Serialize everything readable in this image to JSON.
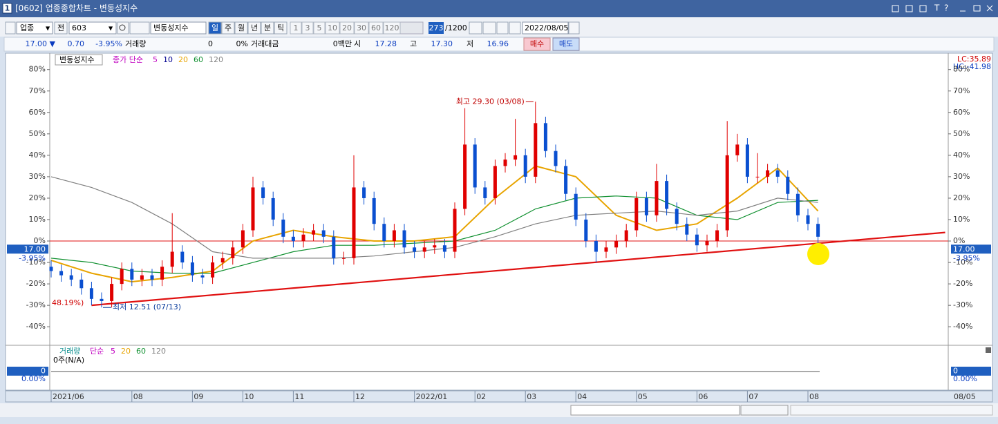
{
  "window": {
    "badge": "1",
    "title": "[0602] 업종종합차트 - 변동성지수"
  },
  "toolbar": {
    "market": "업종",
    "scope": "전",
    "code": "603",
    "name": "변동성지수",
    "periods": [
      "일",
      "주",
      "월",
      "년",
      "분",
      "틱"
    ],
    "intervals": [
      "1",
      "3",
      "5",
      "10",
      "20",
      "30",
      "60",
      "120"
    ],
    "count": "273",
    "count_max": "/1200",
    "date": "2022/08/05"
  },
  "quote": {
    "price": "17.00 ▼",
    "change": "0.70",
    "change_pct": "-3.95%",
    "volume_label": "거래량",
    "volume": "0",
    "volume_pct": "0%",
    "amount_label": "거래대금",
    "amount": "0백만",
    "open_label": "시",
    "open": "17.28",
    "high_label": "고",
    "high": "17.30",
    "low_label": "저",
    "low": "16.96",
    "buy": "매수",
    "sell": "매도"
  },
  "chart_data": {
    "type": "candlestick",
    "series_name": "변동성지수",
    "categories": [
      "2021/06",
      null,
      null,
      null,
      null,
      null,
      null,
      null,
      "08",
      null,
      null,
      null,
      null,
      null,
      "09",
      null,
      null,
      null,
      null,
      "10",
      null,
      null,
      null,
      null,
      "11",
      null,
      null,
      null,
      null,
      null,
      "12",
      null,
      null,
      null,
      null,
      null,
      "2022/01",
      null,
      null,
      null,
      null,
      null,
      "02",
      null,
      null,
      null,
      null,
      "03",
      null,
      null,
      null,
      null,
      "04",
      null,
      null,
      null,
      null,
      null,
      "05",
      null,
      null,
      null,
      null,
      null,
      "06",
      null,
      null,
      null,
      null,
      "07",
      null,
      null,
      null,
      null,
      null,
      "08",
      null
    ],
    "open": [
      -12,
      -14,
      -16,
      -18,
      -22,
      -27,
      -28,
      -20,
      -13,
      -18,
      -16,
      -18,
      -12,
      -5,
      -10,
      -16,
      -17,
      -10,
      -8,
      -3,
      5,
      25,
      20,
      10,
      2,
      0,
      3,
      5,
      2,
      -8,
      -8,
      25,
      20,
      8,
      0,
      5,
      -3,
      -5,
      -3,
      -2,
      -5,
      15,
      45,
      25,
      20,
      35,
      38,
      40,
      30,
      55,
      42,
      35,
      22,
      10,
      0,
      -5,
      -3,
      0,
      5,
      20,
      12,
      28,
      15,
      8,
      3,
      -2,
      0,
      5,
      40,
      45,
      30,
      30,
      33,
      30,
      22,
      12,
      8
    ],
    "high": [
      -9,
      -11,
      -13,
      -15,
      -19,
      -24,
      -17,
      -10,
      -10,
      -13,
      -13,
      -9,
      13,
      -2,
      -7,
      -13,
      -7,
      -5,
      0,
      8,
      30,
      28,
      23,
      13,
      5,
      6,
      8,
      8,
      5,
      -5,
      40,
      28,
      23,
      11,
      8,
      8,
      0,
      0,
      1,
      1,
      18,
      62,
      48,
      28,
      38,
      41,
      57,
      43,
      65,
      58,
      45,
      38,
      25,
      13,
      3,
      0,
      3,
      8,
      23,
      23,
      36,
      31,
      18,
      11,
      6,
      3,
      8,
      56,
      50,
      48,
      41,
      36,
      36,
      33,
      25,
      15,
      11
    ],
    "low": [
      -17,
      -19,
      -21,
      -25,
      -30,
      -31,
      -31,
      -23,
      -21,
      -21,
      -21,
      -21,
      -15,
      -13,
      -19,
      -20,
      -20,
      -13,
      -11,
      -6,
      2,
      17,
      7,
      -1,
      -3,
      -3,
      0,
      -1,
      -11,
      -11,
      -11,
      17,
      5,
      -3,
      -3,
      -6,
      -8,
      -8,
      -6,
      -8,
      -8,
      12,
      22,
      17,
      17,
      32,
      35,
      27,
      27,
      39,
      32,
      19,
      7,
      -3,
      -10,
      -8,
      -6,
      -3,
      2,
      9,
      9,
      12,
      5,
      0,
      -5,
      -5,
      -3,
      2,
      37,
      27,
      27,
      27,
      27,
      19,
      9,
      5,
      -1
    ],
    "close": [
      -14,
      -16,
      -18,
      -22,
      -27,
      -28,
      -20,
      -13,
      -18,
      -16,
      -18,
      -12,
      -5,
      -10,
      -16,
      -17,
      -10,
      -8,
      -3,
      5,
      25,
      20,
      10,
      2,
      0,
      3,
      5,
      2,
      -8,
      -8,
      25,
      20,
      8,
      0,
      5,
      -3,
      -5,
      -3,
      -2,
      -5,
      15,
      45,
      25,
      20,
      35,
      38,
      40,
      30,
      55,
      42,
      35,
      22,
      10,
      0,
      -5,
      -3,
      0,
      5,
      20,
      12,
      28,
      15,
      8,
      3,
      -2,
      0,
      5,
      40,
      45,
      30,
      30,
      33,
      30,
      22,
      12,
      8,
      2
    ],
    "up_color": "#e00000",
    "down_color": "#0a4fd0",
    "ylim": [
      -48,
      87
    ],
    "yticks": [
      {
        "value": 80,
        "label": "80%"
      },
      {
        "value": 70,
        "label": "70%"
      },
      {
        "value": 60,
        "label": "60%"
      },
      {
        "value": 50,
        "label": "50%"
      },
      {
        "value": 40,
        "label": "40%"
      },
      {
        "value": 30,
        "label": "30%"
      },
      {
        "value": 20,
        "label": "20%"
      },
      {
        "value": 10,
        "label": "10%"
      },
      {
        "value": 0,
        "label": "0%"
      },
      {
        "value": -10,
        "label": "-10%"
      },
      {
        "value": -20,
        "label": "-20%"
      },
      {
        "value": -30,
        "label": "-30%"
      },
      {
        "value": -40,
        "label": "-40%"
      }
    ],
    "ma": {
      "label": "종가 단순",
      "label_color": "#c000c0",
      "lines": [
        {
          "name": "5",
          "color": "#c000c0"
        },
        {
          "name": "10",
          "color": "#000090"
        },
        {
          "name": "20",
          "color": "#e8a400",
          "x": [
            0,
            4,
            8,
            12,
            16,
            20,
            24,
            28,
            32,
            36,
            40,
            44,
            48,
            52,
            56,
            60,
            64,
            68,
            72,
            76
          ],
          "values": [
            -9,
            -15,
            -19,
            -17,
            -14,
            0,
            5,
            2,
            0,
            0,
            2,
            20,
            35,
            30,
            12,
            5,
            8,
            20,
            34,
            14
          ]
        },
        {
          "name": "60",
          "color": "#109030",
          "x": [
            0,
            4,
            8,
            12,
            16,
            20,
            24,
            28,
            32,
            36,
            40,
            44,
            48,
            52,
            56,
            60,
            64,
            68,
            72,
            76
          ],
          "values": [
            -8,
            -10,
            -14,
            -15,
            -15,
            -10,
            -5,
            -2,
            -2,
            -1,
            0,
            5,
            15,
            20,
            21,
            20,
            12,
            10,
            18,
            19
          ]
        },
        {
          "name": "120",
          "color": "#808080",
          "x": [
            0,
            4,
            8,
            12,
            16,
            20,
            24,
            28,
            32,
            36,
            40,
            44,
            48,
            52,
            56,
            60,
            64,
            68,
            72,
            76
          ],
          "values": [
            30,
            25,
            18,
            8,
            -5,
            -8,
            -8,
            -8,
            -7,
            -5,
            -3,
            2,
            8,
            12,
            13,
            14,
            12,
            14,
            20,
            18
          ]
        }
      ]
    },
    "trendline": {
      "color": "#e01010",
      "x": [
        4,
        88.6
      ],
      "values": [
        -30,
        4
      ]
    },
    "baseline": 0,
    "annotations": [
      {
        "text": "최고 29.30 (03/08)",
        "x": 48,
        "y": 65,
        "color": "#c00000"
      },
      {
        "text": "최저 12.51 (07/13)",
        "x": 5,
        "y": -31,
        "color": "#0a3c9c"
      }
    ],
    "low_pct": "48.19%)",
    "current": {
      "label": "17.00",
      "value": -3.95,
      "pct_label": "-3.95%"
    },
    "lc": "LC:35.89",
    "hc": "HC:-41.98",
    "end_label": "08/05"
  },
  "volume_panel": {
    "title": "거래량",
    "ma_label": "단순",
    "periods": [
      {
        "name": "5",
        "color": "#c000c0"
      },
      {
        "name": "20",
        "color": "#e8a400"
      },
      {
        "name": "60",
        "color": "#109030"
      },
      {
        "name": "120",
        "color": "#808080"
      }
    ],
    "note": "0주(N/A)",
    "value_label": "0",
    "pct_label": "0.00%"
  }
}
